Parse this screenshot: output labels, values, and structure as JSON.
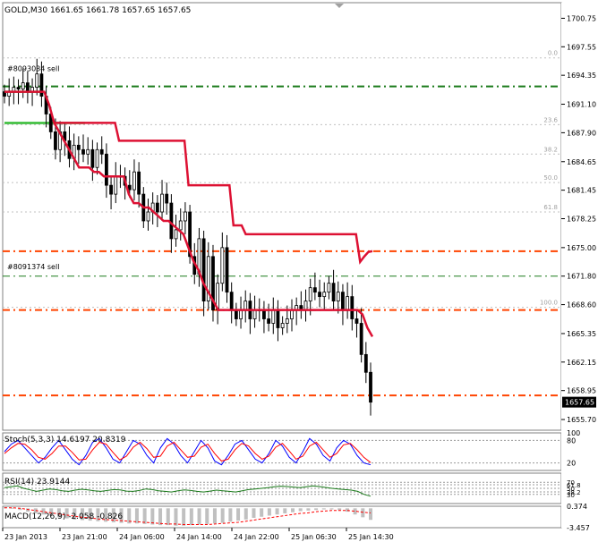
{
  "chart_data": [
    {
      "type": "candlestick",
      "panel": "main",
      "title": "GOLD,M30  1661.65 1661.78 1657.65 1657.65",
      "symbol": "GOLD,M30",
      "ohlc_header": "1661.65 1661.78 1657.65 1657.65",
      "current_price": "1657.65",
      "ylim": [
        1654.5,
        1702.5
      ],
      "y_ticks": [
        "1700.75",
        "1697.55",
        "1694.35",
        "1691.10",
        "1687.90",
        "1684.65",
        "1681.45",
        "1678.25",
        "1675.00",
        "1671.80",
        "1668.60",
        "1665.35",
        "1662.15",
        "1658.95",
        "1655.70"
      ],
      "x_ticks": [
        "23 Jan 2013",
        "23 Jan 21:00",
        "24 Jan 06:00",
        "24 Jan 14:00",
        "24 Jan 22:00",
        "25 Jan 06:30",
        "25 Jan 14:30"
      ],
      "order_labels": [
        "#8093034 sell",
        "#8091374 sell"
      ],
      "fib_levels": [
        {
          "label": "0.0",
          "y": 1696.3
        },
        {
          "label": "23.6",
          "y": 1688.8
        },
        {
          "label": "38.2",
          "y": 1685.5
        },
        {
          "label": "50.0",
          "y": 1682.3
        },
        {
          "label": "61.8",
          "y": 1679.0
        },
        {
          "label": "100.0",
          "y": 1668.3
        }
      ],
      "horizontal_lines": [
        {
          "y": 1693.1,
          "color": "#1a7a1a",
          "style": "dash-dot"
        },
        {
          "y": 1674.6,
          "color": "#ff4400",
          "style": "dash-dot"
        },
        {
          "y": 1671.8,
          "color": "#1a7a1a",
          "style": "dash-dot-thin"
        },
        {
          "y": 1668.0,
          "color": "#ff4400",
          "style": "dash-dot"
        },
        {
          "y": 1658.4,
          "color": "#ff4400",
          "style": "dash-dot"
        }
      ],
      "close_series": [
        1692,
        1692.5,
        1693,
        1692.8,
        1693.5,
        1692.5,
        1693,
        1694.5,
        1692,
        1690,
        1688,
        1686,
        1688,
        1687,
        1685,
        1686.5,
        1686,
        1685.5,
        1686,
        1684,
        1686,
        1685.5,
        1682,
        1681,
        1683,
        1683,
        1682,
        1681.5,
        1683.5,
        1681,
        1678,
        1679,
        1680,
        1679,
        1681,
        1680,
        1676,
        1677,
        1678,
        1679,
        1674,
        1672,
        1676,
        1669,
        1674,
        1668,
        1671,
        1675,
        1670,
        1668,
        1667,
        1668,
        1669,
        1667,
        1668,
        1668,
        1667,
        1666.5,
        1668,
        1666,
        1666.5,
        1667,
        1668,
        1668.5,
        1668,
        1669,
        1670.5,
        1670,
        1669.5,
        1670,
        1671,
        1669,
        1670,
        1668,
        1669.5,
        1667,
        1666.5,
        1663,
        1661,
        1657.65
      ],
      "trailing_stop": [
        1692.5,
        1692.5,
        1692.5,
        1692.5,
        1692.5,
        1692.5,
        1692.5,
        1692.5,
        1692.5,
        1691,
        1689,
        1688,
        1687,
        1686,
        1685,
        1684,
        1684,
        1684,
        1683.5,
        1683.5,
        1683,
        1683,
        1683,
        1683,
        1683,
        1681,
        1680,
        1680,
        1679.5,
        1679.5,
        1679,
        1678.5,
        1678,
        1678,
        1677.5,
        1677,
        1676.5,
        1675,
        1673.5,
        1672.5,
        1671,
        1670,
        1669,
        1668,
        1668,
        1668,
        1668,
        1668,
        1668,
        1668,
        1668,
        1668,
        1668,
        1668,
        1668,
        1668,
        1668,
        1668,
        1668,
        1668,
        1668,
        1668,
        1668,
        1668,
        1668,
        1668,
        1668,
        1668,
        1668,
        1668,
        1668,
        1668,
        1667.5,
        1666,
        1665
      ],
      "stop_line": [
        1689,
        1689,
        1689,
        1689,
        1689,
        1689,
        1689,
        1689,
        1689,
        1689,
        1689,
        1689,
        1689,
        1689,
        1689,
        1689,
        1687,
        1687,
        1687,
        1687,
        1687,
        1687,
        1687,
        1687,
        1687,
        1687,
        1687,
        1687,
        1687,
        1687,
        1687,
        1687,
        1687,
        1682,
        1682,
        1682,
        1682,
        1682,
        1682,
        1682,
        1682,
        1682,
        1682,
        1682,
        1677.5,
        1677.5,
        1677.5,
        1676.5,
        1676.5,
        1676.5,
        1676.5,
        1676.5,
        1676.5,
        1676.5,
        1676.5,
        1676.5,
        1676.5,
        1676.5,
        1676.5,
        1676.5,
        1676.5,
        1676.5,
        1676.5,
        1676.5,
        1676.5,
        1676.5,
        1676.5,
        1676.5,
        1676.5,
        1676.5,
        1676.5,
        1676.5,
        1676.5,
        1676.5,
        1676.5,
        1673.4,
        1674.0,
        1674.5,
        1674.6
      ],
      "colors": {
        "candles": "#000000",
        "trail": "#dd1133",
        "order_line": "#1a7a1a",
        "level_line": "#ff4400",
        "fib": "#c0c0c0",
        "grid": "#c8c8c8"
      }
    },
    {
      "type": "line",
      "panel": "stochastic",
      "title": "Stoch(5,3,3) 14.6197 20.8319",
      "ylim": [
        0,
        100
      ],
      "y_ticks": [
        "100",
        "80",
        "20"
      ],
      "series": [
        {
          "name": "main",
          "color": "#0000ff",
          "values": [
            50,
            70,
            80,
            60,
            40,
            20,
            35,
            60,
            80,
            55,
            30,
            15,
            40,
            75,
            85,
            60,
            30,
            20,
            50,
            80,
            70,
            40,
            20,
            60,
            85,
            70,
            40,
            20,
            50,
            80,
            60,
            25,
            15,
            40,
            70,
            80,
            55,
            30,
            20,
            45,
            80,
            65,
            35,
            20,
            50,
            85,
            70,
            40,
            25,
            60,
            80,
            70,
            40,
            20,
            15
          ]
        },
        {
          "name": "signal",
          "color": "#ff0000",
          "values": [
            45,
            60,
            72,
            70,
            55,
            35,
            30,
            45,
            65,
            65,
            48,
            28,
            30,
            55,
            75,
            70,
            48,
            28,
            38,
            62,
            75,
            58,
            35,
            38,
            65,
            75,
            55,
            35,
            38,
            62,
            70,
            45,
            25,
            30,
            55,
            72,
            65,
            45,
            30,
            38,
            62,
            72,
            52,
            30,
            38,
            65,
            75,
            55,
            35,
            45,
            68,
            72,
            55,
            35,
            21
          ]
        }
      ]
    },
    {
      "type": "line",
      "panel": "rsi",
      "title": "RSI(14) 23.9144",
      "ylim": [
        0,
        100
      ],
      "y_ticks": [
        "70",
        "61.8",
        "50",
        "38.2",
        "30"
      ],
      "series": [
        {
          "name": "RSI",
          "color": "#1a7a1a",
          "values": [
            52,
            55,
            58,
            50,
            45,
            40,
            44,
            48,
            46,
            42,
            40,
            44,
            47,
            45,
            42,
            40,
            43,
            46,
            45,
            41,
            40,
            43,
            48,
            46,
            42,
            40,
            38,
            42,
            45,
            43,
            40,
            38,
            41,
            44,
            42,
            40,
            38,
            42,
            46,
            48,
            50,
            52,
            55,
            57,
            56,
            54,
            52,
            55,
            58,
            56,
            53,
            50,
            48,
            46,
            44,
            40,
            30,
            24
          ]
        }
      ]
    },
    {
      "type": "bar",
      "panel": "macd",
      "title": "MACD(12,26,9) -2.058 -0.826",
      "ylim": [
        -3.457,
        0.374
      ],
      "y_ticks": [
        "0.374",
        "-3.457"
      ],
      "series": [
        {
          "name": "MACD",
          "color": "#c0c0c0",
          "values": [
            0.2,
            0.1,
            -0.3,
            -0.6,
            -0.9,
            -1.1,
            -1.3,
            -1.6,
            -1.8,
            -2.0,
            -2.1,
            -2.2,
            -2.3,
            -2.4,
            -2.5,
            -2.6,
            -2.7,
            -2.7,
            -2.8,
            -2.9,
            -3.0,
            -3.0,
            -3.1,
            -3.1,
            -3.0,
            -2.9,
            -2.8,
            -2.7,
            -2.6,
            -2.4,
            -2.2,
            -2.0,
            -1.7,
            -1.5,
            -1.3,
            -1.1,
            -0.9,
            -0.7,
            -0.5,
            -0.4,
            -0.3,
            -0.2,
            -0.2,
            -0.3,
            -0.6,
            -1.1,
            -1.6,
            -2.058
          ]
        },
        {
          "name": "signal",
          "color": "#ff0000",
          "values": [
            0.1,
            0.1,
            0,
            -0.2,
            -0.4,
            -0.6,
            -0.8,
            -1.0,
            -1.2,
            -1.4,
            -1.6,
            -1.7,
            -1.9,
            -2.0,
            -2.1,
            -2.2,
            -2.3,
            -2.4,
            -2.5,
            -2.6,
            -2.7,
            -2.8,
            -2.8,
            -2.9,
            -2.9,
            -2.9,
            -2.9,
            -2.8,
            -2.7,
            -2.6,
            -2.5,
            -2.3,
            -2.1,
            -1.9,
            -1.7,
            -1.5,
            -1.3,
            -1.1,
            -0.9,
            -0.8,
            -0.6,
            -0.5,
            -0.4,
            -0.4,
            -0.4,
            -0.5,
            -0.7,
            -0.826
          ]
        }
      ]
    }
  ]
}
